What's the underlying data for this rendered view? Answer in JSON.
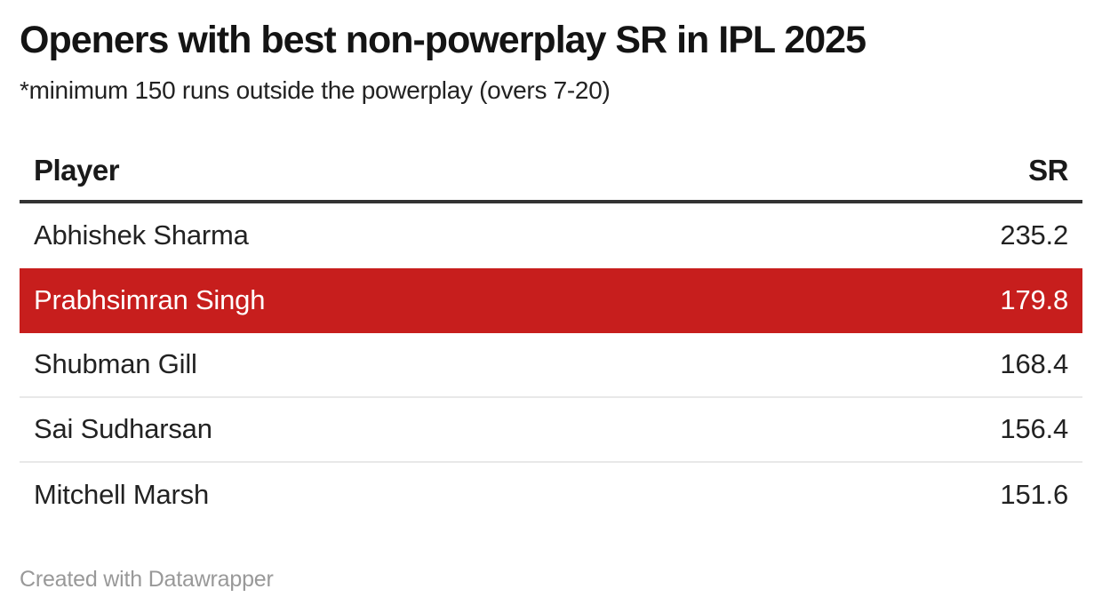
{
  "header": {
    "title": "Openers with best non-powerplay SR in IPL 2025",
    "subtitle": "*minimum 150 runs outside the powerplay (overs 7-20)"
  },
  "table": {
    "columns": {
      "player": "Player",
      "sr": "SR"
    },
    "rows": [
      {
        "player": "Abhishek Sharma",
        "sr": "235.2",
        "highlighted": false
      },
      {
        "player": "Prabhsimran Singh",
        "sr": "179.8",
        "highlighted": true
      },
      {
        "player": "Shubman Gill",
        "sr": "168.4",
        "highlighted": false
      },
      {
        "player": "Sai Sudharsan",
        "sr": "156.4",
        "highlighted": false
      },
      {
        "player": "Mitchell Marsh",
        "sr": "151.6",
        "highlighted": false
      }
    ]
  },
  "footer": {
    "credit": "Created with Datawrapper"
  },
  "colors": {
    "highlight_bg": "#c71e1d",
    "highlight_text": "#ffffff",
    "header_border": "#333333",
    "row_divider": "#e8e8e8",
    "title_text": "#141414",
    "body_text": "#222222",
    "footer_text": "#999999"
  },
  "chart_data": {
    "type": "table",
    "title": "Openers with best non-powerplay SR in IPL 2025",
    "subtitle": "*minimum 150 runs outside the powerplay (overs 7-20)",
    "columns": [
      "Player",
      "SR"
    ],
    "rows": [
      [
        "Abhishek Sharma",
        235.2
      ],
      [
        "Prabhsimran Singh",
        179.8
      ],
      [
        "Shubman Gill",
        168.4
      ],
      [
        "Sai Sudharsan",
        156.4
      ],
      [
        "Mitchell Marsh",
        151.6
      ]
    ],
    "highlighted_row": "Prabhsimran Singh",
    "footer": "Created with Datawrapper"
  }
}
